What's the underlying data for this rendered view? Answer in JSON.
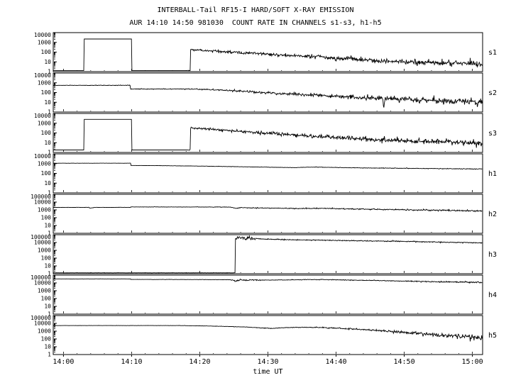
{
  "title": "INTERBALL-Tail RF15-I HARD/SOFT X-RAY EMISSION",
  "subtitle": "AUR 14:10 14:50 981030  COUNT RATE IN CHANNELS s1-s3, h1-h5",
  "xlabel": "time UT",
  "colors": {
    "background": "#ffffff",
    "foreground": "#000000"
  },
  "chart_data": {
    "type": "line",
    "x_start_min": -1.5,
    "x_end_min": 61.5,
    "x_ticks": [
      {
        "t": 0,
        "label": "14:00"
      },
      {
        "t": 10,
        "label": "14:10"
      },
      {
        "t": 20,
        "label": "14:20"
      },
      {
        "t": 30,
        "label": "14:30"
      },
      {
        "t": 40,
        "label": "14:40"
      },
      {
        "t": 50,
        "label": "14:50"
      },
      {
        "t": 60,
        "label": "15:00"
      }
    ],
    "x_minor_step_min": 2,
    "panels": [
      {
        "label": "s1",
        "ymin": 1,
        "ymax": 10000,
        "ytick_labels": [
          "10000",
          "1000",
          "100",
          "10",
          "1"
        ],
        "keypoints": [
          [
            -1.5,
            1.3
          ],
          [
            3,
            1.3
          ],
          [
            3,
            2200
          ],
          [
            10,
            2200
          ],
          [
            10,
            1.3
          ],
          [
            18.6,
            1.3
          ],
          [
            18.6,
            180
          ],
          [
            22,
            130
          ],
          [
            27,
            80
          ],
          [
            32,
            50
          ],
          [
            38,
            30
          ],
          [
            45,
            15
          ],
          [
            52,
            9
          ],
          [
            61.5,
            6
          ]
        ],
        "noise": [
          [
            -1.5,
            0
          ],
          [
            18,
            0
          ],
          [
            19,
            0.12
          ],
          [
            40,
            0.25
          ],
          [
            61.5,
            0.4
          ]
        ]
      },
      {
        "label": "s2",
        "ymin": 1,
        "ymax": 10000,
        "ytick_labels": [
          "10000",
          "1000",
          "100",
          "10",
          "1"
        ],
        "keypoints": [
          [
            -1.5,
            550
          ],
          [
            9.8,
            550
          ],
          [
            9.8,
            230
          ],
          [
            18.6,
            230
          ],
          [
            24,
            170
          ],
          [
            30,
            90
          ],
          [
            36,
            55
          ],
          [
            42,
            35
          ],
          [
            46.8,
            25
          ],
          [
            47,
            2.5
          ],
          [
            47.2,
            25
          ],
          [
            52,
            18
          ],
          [
            61.5,
            11
          ]
        ],
        "noise": [
          [
            -1.5,
            0.02
          ],
          [
            18,
            0.05
          ],
          [
            30,
            0.15
          ],
          [
            61.5,
            0.4
          ]
        ]
      },
      {
        "label": "s3",
        "ymin": 1,
        "ymax": 10000,
        "ytick_labels": [
          "10000",
          "1000",
          "100",
          "10",
          "1"
        ],
        "keypoints": [
          [
            -1.5,
            1.8
          ],
          [
            3,
            1.8
          ],
          [
            3,
            2500
          ],
          [
            10,
            2500
          ],
          [
            10,
            1.8
          ],
          [
            18.6,
            1.8
          ],
          [
            18.6,
            350
          ],
          [
            22,
            230
          ],
          [
            27,
            130
          ],
          [
            32,
            75
          ],
          [
            38,
            40
          ],
          [
            45,
            22
          ],
          [
            52,
            14
          ],
          [
            61.5,
            9
          ]
        ],
        "noise": [
          [
            -1.5,
            0
          ],
          [
            18,
            0
          ],
          [
            19,
            0.12
          ],
          [
            40,
            0.25
          ],
          [
            61.5,
            0.38
          ]
        ]
      },
      {
        "label": "h1",
        "ymin": 1,
        "ymax": 10000,
        "ytick_labels": [
          "10000",
          "1000",
          "100",
          "10",
          "1"
        ],
        "keypoints": [
          [
            -1.5,
            1100
          ],
          [
            9.9,
            1100
          ],
          [
            9.9,
            650
          ],
          [
            14,
            620
          ],
          [
            20,
            560
          ],
          [
            26,
            480
          ],
          [
            30,
            430
          ],
          [
            34,
            390
          ],
          [
            36.5,
            440
          ],
          [
            38,
            430
          ],
          [
            41,
            390
          ],
          [
            46,
            350
          ],
          [
            52,
            320
          ],
          [
            61.5,
            280
          ]
        ],
        "noise": [
          [
            -1.5,
            0.01
          ],
          [
            30,
            0.02
          ],
          [
            61.5,
            0.05
          ]
        ]
      },
      {
        "label": "h2",
        "ymin": 1,
        "ymax": 100000,
        "ytick_labels": [
          "100000",
          "10000",
          "1000",
          "100",
          "10",
          "1"
        ],
        "keypoints": [
          [
            -1.5,
            2100
          ],
          [
            3.8,
            2100
          ],
          [
            3.8,
            1800
          ],
          [
            4.4,
            1800
          ],
          [
            4.4,
            2100
          ],
          [
            9.9,
            2100
          ],
          [
            9.9,
            2400
          ],
          [
            20,
            2350
          ],
          [
            24.5,
            2300
          ],
          [
            25.3,
            1600
          ],
          [
            26.2,
            2000
          ],
          [
            27.5,
            1800
          ],
          [
            30,
            1750
          ],
          [
            34,
            1500
          ],
          [
            37,
            1600
          ],
          [
            40,
            1450
          ],
          [
            45,
            1200
          ],
          [
            50,
            1050
          ],
          [
            55,
            900
          ],
          [
            61.5,
            750
          ]
        ],
        "noise": [
          [
            -1.5,
            0.02
          ],
          [
            20,
            0.03
          ],
          [
            30,
            0.06
          ],
          [
            61.5,
            0.12
          ]
        ]
      },
      {
        "label": "h3",
        "ymin": 1,
        "ymax": 100000,
        "ytick_labels": [
          "100000",
          "10000",
          "1000",
          "100",
          "10",
          "1"
        ],
        "keypoints": [
          [
            -1.5,
            1.3
          ],
          [
            25.2,
            1.3
          ],
          [
            25.2,
            25000
          ],
          [
            25.5,
            45000
          ],
          [
            25.8,
            28000
          ],
          [
            26.1,
            50000
          ],
          [
            26.5,
            30000
          ],
          [
            27,
            42000
          ],
          [
            27.5,
            30000
          ],
          [
            28.3,
            33000
          ],
          [
            29.5,
            27000
          ],
          [
            32,
            24000
          ],
          [
            36,
            21000
          ],
          [
            40,
            19000
          ],
          [
            45,
            16000
          ],
          [
            50,
            14000
          ],
          [
            55,
            11500
          ],
          [
            61.5,
            9000
          ]
        ],
        "noise": [
          [
            -1.5,
            0.01
          ],
          [
            25.1,
            0.01
          ],
          [
            25.4,
            0.35
          ],
          [
            27.5,
            0.25
          ],
          [
            28.5,
            0.06
          ],
          [
            61.5,
            0.08
          ]
        ]
      },
      {
        "label": "h4",
        "ymin": 1,
        "ymax": 100000,
        "ytick_labels": [
          "100000",
          "10000",
          "1000",
          "100",
          "10",
          "1"
        ],
        "keypoints": [
          [
            -1.5,
            33000
          ],
          [
            9.9,
            33000
          ],
          [
            9.9,
            28000
          ],
          [
            20,
            27000
          ],
          [
            24.5,
            26000
          ],
          [
            25.3,
            19000
          ],
          [
            26,
            25000
          ],
          [
            26.8,
            21000
          ],
          [
            27.5,
            24000
          ],
          [
            28.5,
            22500
          ],
          [
            30,
            23500
          ],
          [
            33,
            24500
          ],
          [
            36,
            26500
          ],
          [
            38,
            27000
          ],
          [
            41,
            24000
          ],
          [
            45,
            21000
          ],
          [
            50,
            17000
          ],
          [
            55,
            14000
          ],
          [
            61.5,
            11500
          ]
        ],
        "noise": [
          [
            -1.5,
            0.01
          ],
          [
            24,
            0.02
          ],
          [
            25,
            0.12
          ],
          [
            28,
            0.12
          ],
          [
            29,
            0.04
          ],
          [
            40,
            0.05
          ],
          [
            61.5,
            0.1
          ]
        ]
      },
      {
        "label": "h5",
        "ymin": 1,
        "ymax": 100000,
        "ytick_labels": [
          "100000",
          "10000",
          "1000",
          "100",
          "10",
          "1"
        ],
        "keypoints": [
          [
            -1.5,
            5200
          ],
          [
            17,
            5200
          ],
          [
            20,
            4800
          ],
          [
            24,
            4000
          ],
          [
            27,
            3400
          ],
          [
            29,
            2600
          ],
          [
            30.5,
            2200
          ],
          [
            32,
            2700
          ],
          [
            34,
            3000
          ],
          [
            37,
            3000
          ],
          [
            40,
            2500
          ],
          [
            43,
            1800
          ],
          [
            46,
            1200
          ],
          [
            49,
            800
          ],
          [
            52,
            500
          ],
          [
            55,
            330
          ],
          [
            58,
            220
          ],
          [
            61.5,
            150
          ]
        ],
        "noise": [
          [
            -1.5,
            0.01
          ],
          [
            20,
            0.02
          ],
          [
            35,
            0.05
          ],
          [
            45,
            0.12
          ],
          [
            55,
            0.3
          ],
          [
            61.5,
            0.5
          ]
        ]
      }
    ]
  }
}
